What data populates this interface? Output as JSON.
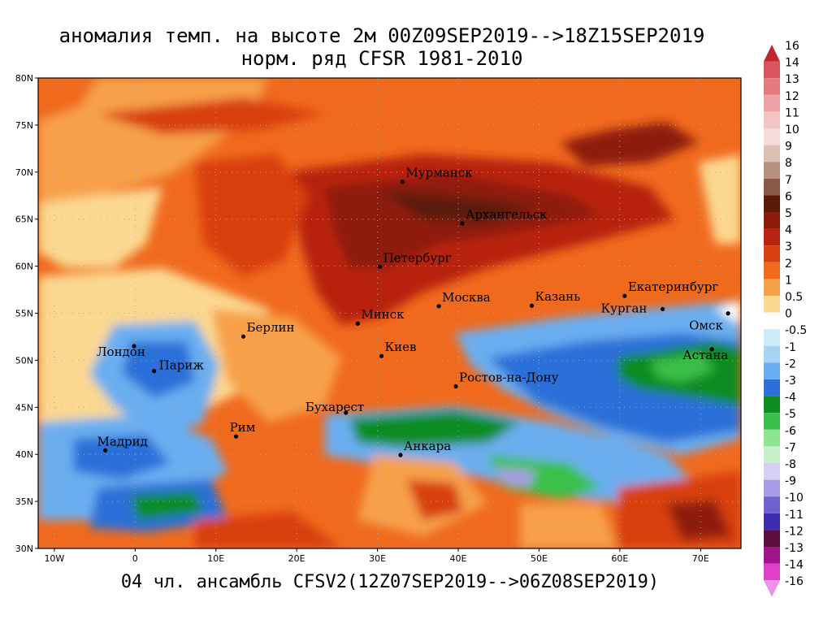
{
  "title_line1": "аномалия темп. на высоте 2м 00Z09SEP2019-->18Z15SEP2019",
  "title_line2": "норм. ряд CFSR 1981-2010",
  "footer": "04 чл. ансамбль CFSV2(12Z07SEP2019-->06Z08SEP2019)",
  "map": {
    "lon_range": [
      -12,
      75
    ],
    "lat_range": [
      30,
      80
    ],
    "lat_ticks": [
      {
        "v": 80,
        "label": "80N"
      },
      {
        "v": 75,
        "label": "75N"
      },
      {
        "v": 70,
        "label": "70N"
      },
      {
        "v": 65,
        "label": "65N"
      },
      {
        "v": 60,
        "label": "60N"
      },
      {
        "v": 55,
        "label": "55N"
      },
      {
        "v": 50,
        "label": "50N"
      },
      {
        "v": 45,
        "label": "45N"
      },
      {
        "v": 40,
        "label": "40N"
      },
      {
        "v": 35,
        "label": "35N"
      },
      {
        "v": 30,
        "label": "30N"
      }
    ],
    "lon_ticks": [
      {
        "v": -10,
        "label": "10W"
      },
      {
        "v": 0,
        "label": "0"
      },
      {
        "v": 10,
        "label": "10E"
      },
      {
        "v": 20,
        "label": "20E"
      },
      {
        "v": 30,
        "label": "30E"
      },
      {
        "v": 40,
        "label": "40E"
      },
      {
        "v": 50,
        "label": "50E"
      },
      {
        "v": 60,
        "label": "60E"
      },
      {
        "v": 70,
        "label": "70E"
      }
    ],
    "cities": [
      {
        "name": "Мурманск",
        "lon": 33.1,
        "lat": 68.97
      },
      {
        "name": "Архангельск",
        "lon": 40.5,
        "lat": 64.54
      },
      {
        "name": "Петербург",
        "lon": 30.3,
        "lat": 59.94
      },
      {
        "name": "Москва",
        "lon": 37.6,
        "lat": 55.75
      },
      {
        "name": "Казань",
        "lon": 49.1,
        "lat": 55.8
      },
      {
        "name": "Екатеринбург",
        "lon": 60.6,
        "lat": 56.84
      },
      {
        "name": "Курган",
        "lon": 65.3,
        "lat": 55.45
      },
      {
        "name": "Омск",
        "lon": 73.4,
        "lat": 54.98
      },
      {
        "name": "Астана",
        "lon": 71.4,
        "lat": 51.17
      },
      {
        "name": "Минск",
        "lon": 27.56,
        "lat": 53.9
      },
      {
        "name": "Киев",
        "lon": 30.5,
        "lat": 50.45
      },
      {
        "name": "Берлин",
        "lon": 13.4,
        "lat": 52.52
      },
      {
        "name": "Лондон",
        "lon": -0.13,
        "lat": 51.5
      },
      {
        "name": "Париж",
        "lon": 2.35,
        "lat": 48.86
      },
      {
        "name": "Мадрид",
        "lon": -3.7,
        "lat": 40.42
      },
      {
        "name": "Рим",
        "lon": 12.5,
        "lat": 41.9
      },
      {
        "name": "Бухарест",
        "lon": 26.1,
        "lat": 44.43
      },
      {
        "name": "Ростов-на-Дону",
        "lon": 39.7,
        "lat": 47.23
      },
      {
        "name": "Анкара",
        "lon": 32.85,
        "lat": 39.93
      }
    ]
  },
  "colorbar": {
    "labels": [
      "16",
      "14",
      "13",
      "12",
      "11",
      "10",
      "9",
      "8",
      "7",
      "6",
      "5",
      "4",
      "3",
      "2",
      "1",
      "0.5",
      "0",
      "-0.5",
      "-1",
      "-2",
      "-3",
      "-4",
      "-5",
      "-6",
      "-7",
      "-8",
      "-9",
      "-10",
      "-11",
      "-12",
      "-13",
      "-14",
      "-16"
    ],
    "colors": [
      "#c0282f",
      "#d9565e",
      "#e47b7f",
      "#eda3a5",
      "#f2c4c4",
      "#f5dcd9",
      "#dcc0b4",
      "#b89180",
      "#8a5a46",
      "#5a1a0a",
      "#8e1a0c",
      "#b82410",
      "#d8400e",
      "#f06a1e",
      "#f7a04a",
      "#fbd890",
      "#ffffff",
      "#cdeaf8",
      "#a7d3f2",
      "#6aaef0",
      "#2b6fd8",
      "#0e8c20",
      "#3ac04a",
      "#90e390",
      "#c8f0c8",
      "#d6cff4",
      "#a89ce6",
      "#6f62cf",
      "#3b2cb0",
      "#5a0e3e",
      "#a0158a",
      "#e040c8",
      "#f090e8"
    ]
  }
}
